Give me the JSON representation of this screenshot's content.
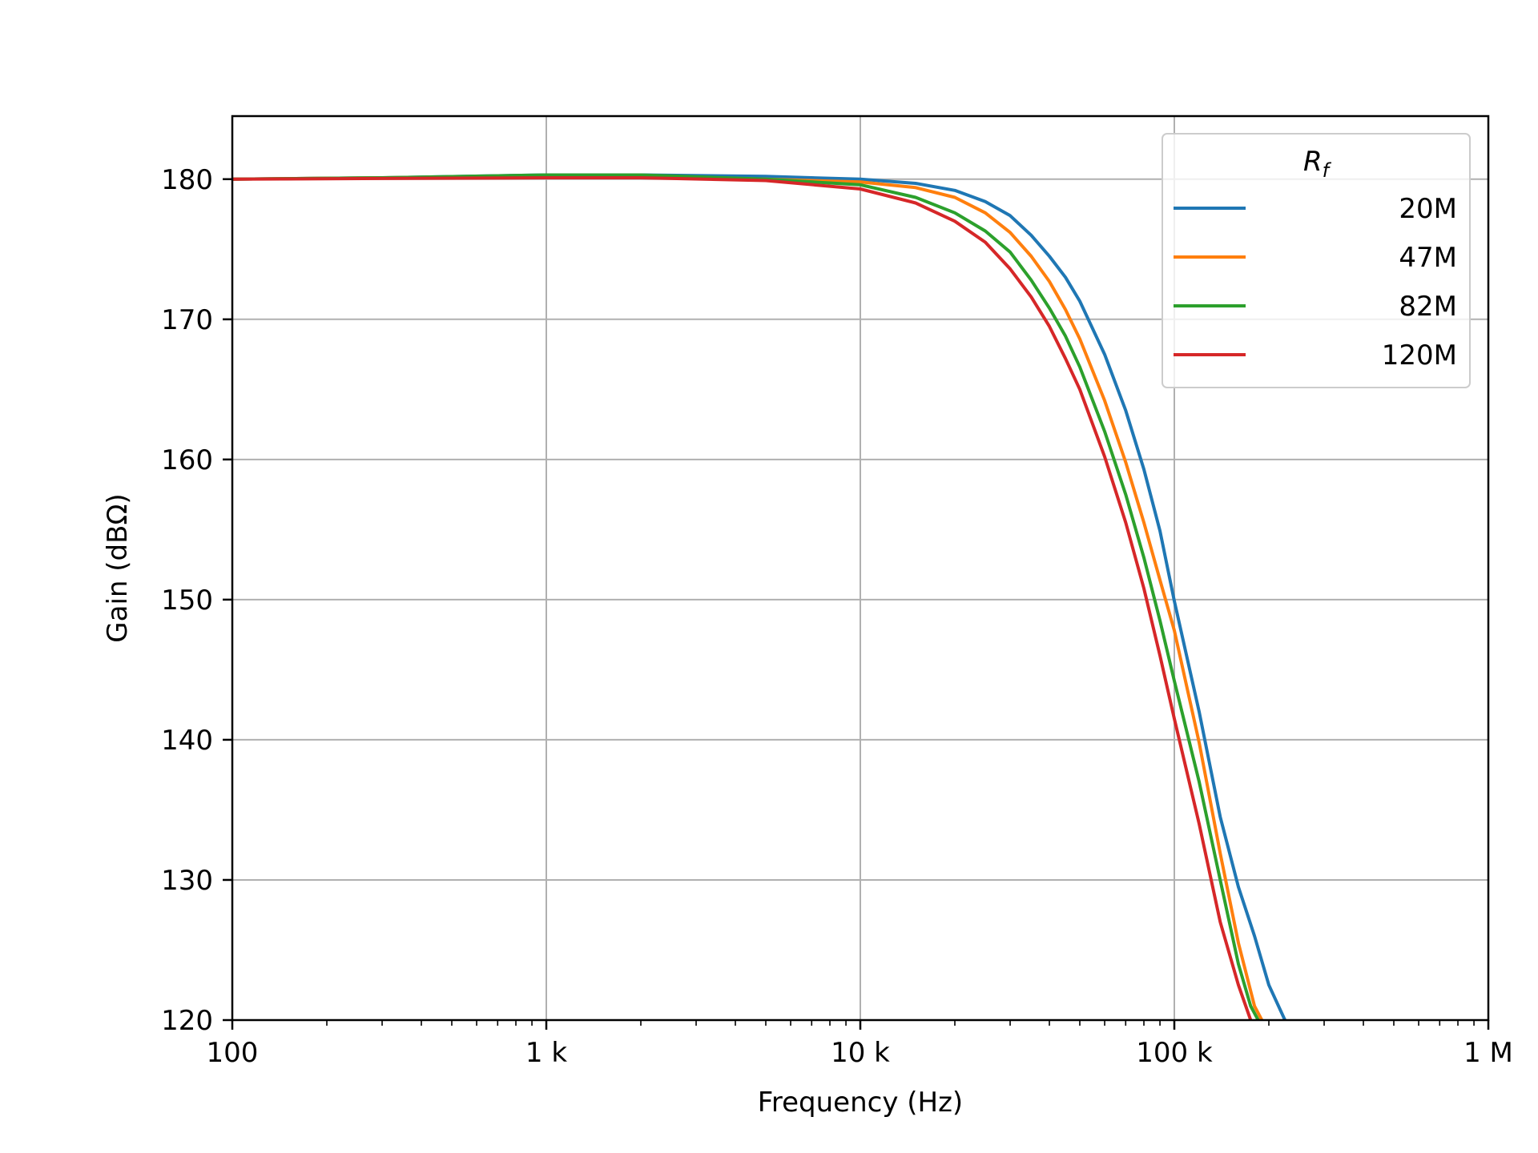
{
  "chart_data": {
    "type": "line",
    "title": "",
    "xlabel": "Frequency (Hz)",
    "ylabel": "Gain (dBΩ)",
    "xscale": "log",
    "xlim": [
      100,
      1000000
    ],
    "ylim": [
      120,
      184.5
    ],
    "x_ticks": [
      {
        "value": 100,
        "label": "100"
      },
      {
        "value": 1000,
        "label": "1 k"
      },
      {
        "value": 10000,
        "label": "10 k"
      },
      {
        "value": 100000,
        "label": "100 k"
      },
      {
        "value": 1000000,
        "label": "1 M"
      }
    ],
    "y_ticks": [
      {
        "value": 120,
        "label": "120"
      },
      {
        "value": 130,
        "label": "130"
      },
      {
        "value": 140,
        "label": "140"
      },
      {
        "value": 150,
        "label": "150"
      },
      {
        "value": 160,
        "label": "160"
      },
      {
        "value": 170,
        "label": "170"
      },
      {
        "value": 180,
        "label": "180"
      }
    ],
    "grid": true,
    "legend": {
      "title": "R_f",
      "title_base": "R",
      "title_sub": "f",
      "placement": "top-right"
    },
    "series": [
      {
        "name": "20M",
        "color": "#1f77b4",
        "x": [
          100,
          300,
          1000,
          2000,
          5000,
          10000,
          15000,
          20000,
          25000,
          30000,
          35000,
          40000,
          45000,
          50000,
          60000,
          70000,
          80000,
          90000,
          100000,
          120000,
          140000,
          160000,
          180000,
          200000,
          225000
        ],
        "y": [
          180,
          180.1,
          180.3,
          180.3,
          180.2,
          180.0,
          179.7,
          179.2,
          178.4,
          177.4,
          176.0,
          174.5,
          173.0,
          171.3,
          167.5,
          163.5,
          159.3,
          154.9,
          149.9,
          142.0,
          134.5,
          129.5,
          126.0,
          122.5,
          120
        ]
      },
      {
        "name": "47M",
        "color": "#ff7f0e",
        "x": [
          100,
          300,
          1000,
          2000,
          5000,
          10000,
          15000,
          20000,
          25000,
          30000,
          35000,
          40000,
          45000,
          50000,
          60000,
          70000,
          80000,
          90000,
          100000,
          120000,
          140000,
          160000,
          180000,
          190000
        ],
        "y": [
          180,
          180.1,
          180.2,
          180.2,
          180.0,
          179.8,
          179.4,
          178.7,
          177.6,
          176.2,
          174.5,
          172.7,
          170.7,
          168.6,
          164.2,
          159.8,
          155.5,
          151.4,
          147.8,
          139.8,
          131.9,
          125.5,
          121.0,
          120
        ]
      },
      {
        "name": "82M",
        "color": "#2ca02c",
        "x": [
          100,
          300,
          1000,
          2000,
          5000,
          10000,
          15000,
          20000,
          25000,
          30000,
          35000,
          40000,
          45000,
          50000,
          60000,
          70000,
          80000,
          90000,
          100000,
          120000,
          140000,
          160000,
          175000,
          185000
        ],
        "y": [
          180,
          180.1,
          180.3,
          180.3,
          180.0,
          179.6,
          178.7,
          177.6,
          176.3,
          174.8,
          172.8,
          170.8,
          168.8,
          166.6,
          162.0,
          157.5,
          153.0,
          148.5,
          144.2,
          137.0,
          130.0,
          124.0,
          121.0,
          120
        ]
      },
      {
        "name": "120M",
        "color": "#d62728",
        "x": [
          100,
          300,
          1000,
          2000,
          5000,
          10000,
          15000,
          20000,
          25000,
          30000,
          35000,
          40000,
          45000,
          50000,
          60000,
          70000,
          80000,
          90000,
          100000,
          120000,
          140000,
          160000,
          175000
        ],
        "y": [
          180,
          180.05,
          180.1,
          180.1,
          179.9,
          179.3,
          178.3,
          177.0,
          175.5,
          173.6,
          171.6,
          169.5,
          167.2,
          165.0,
          160.2,
          155.5,
          150.8,
          146.0,
          141.5,
          134.0,
          127.0,
          122.5,
          120
        ]
      }
    ]
  }
}
